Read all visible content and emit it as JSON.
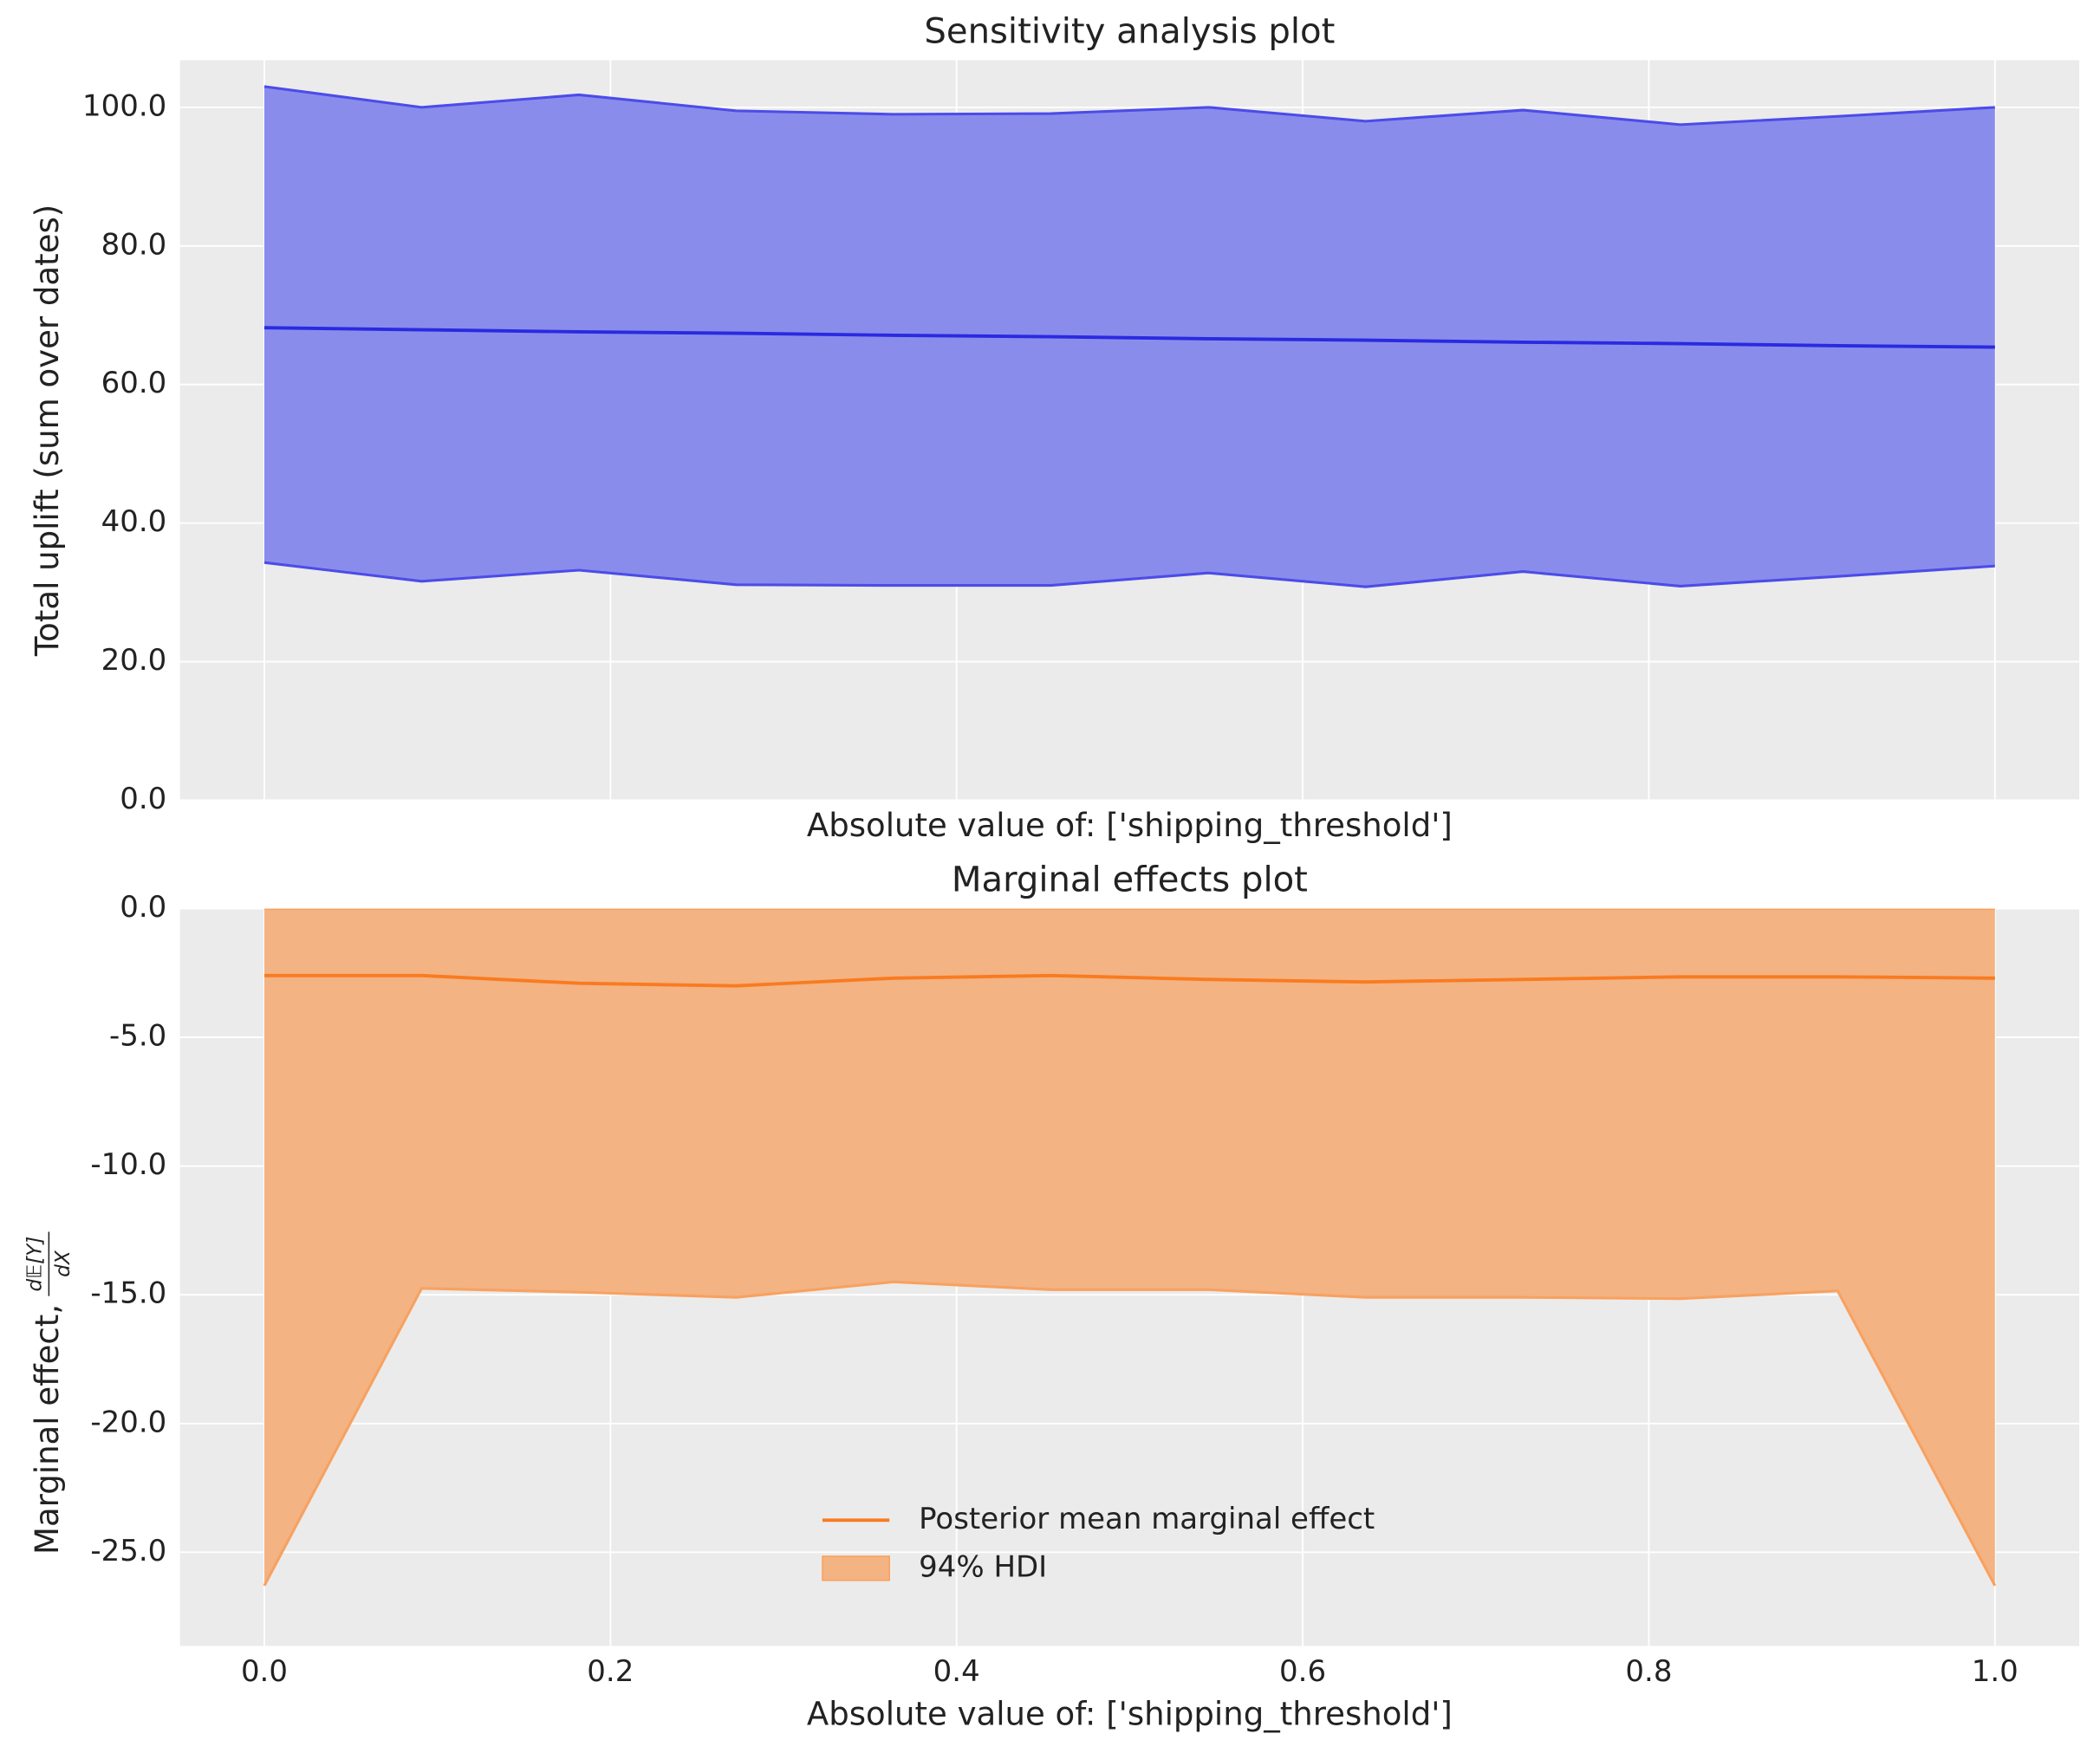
{
  "chart_data": [
    {
      "type": "line",
      "title": "Sensitivity analysis plot",
      "xlabel": "Absolute value of: ['shipping_threshold']",
      "ylabel": "Total uplift (sum over dates)",
      "x": [
        0,
        0.0909,
        0.1818,
        0.2727,
        0.3636,
        0.4545,
        0.5455,
        0.6364,
        0.7273,
        0.8182,
        0.9091,
        1.0
      ],
      "series": [
        {
          "values": [
            68.2,
            67.9,
            67.6,
            67.4,
            67.1,
            66.9,
            66.6,
            66.4,
            66.1,
            65.9,
            65.6,
            65.4
          ],
          "color": "#2a2ae0"
        }
      ],
      "band": {
        "lower": [
          34.3,
          31.6,
          33.2,
          31.1,
          31.0,
          31.0,
          32.8,
          30.8,
          33.0,
          30.9,
          32.3,
          33.8
        ],
        "upper": [
          103.0,
          100.0,
          101.8,
          99.5,
          99.0,
          99.1,
          100.0,
          98.0,
          99.6,
          97.5,
          98.7,
          100.0
        ],
        "color": "#8a8cec",
        "edge_color": "#4c4ce8"
      },
      "xlim": [
        -0.0487,
        1.0487
      ],
      "ylim": [
        0,
        106.8
      ],
      "xticks": [
        0,
        0.2,
        0.4,
        0.6,
        0.8,
        1.0
      ],
      "xtick_labels": false,
      "yticks": [
        {
          "value": 0,
          "label": "0.0"
        },
        {
          "value": 20,
          "label": "20.0"
        },
        {
          "value": 40,
          "label": "40.0"
        },
        {
          "value": 60,
          "label": "60.0"
        },
        {
          "value": 80,
          "label": "80.0"
        },
        {
          "value": 100,
          "label": "100.0"
        }
      ],
      "grid": true
    },
    {
      "type": "line",
      "title": "Marginal effects plot",
      "xlabel": "Absolute value of: ['shipping_threshold']",
      "ylabel": "Marginal effect,",
      "ylabel_math": {
        "numerator": "d𝔼[Y]",
        "denominator": "dX"
      },
      "x": [
        0,
        0.0909,
        0.1818,
        0.2727,
        0.3636,
        0.4545,
        0.5455,
        0.6364,
        0.7273,
        0.8182,
        0.9091,
        1.0
      ],
      "series": [
        {
          "name": "Posterior mean marginal effect",
          "values": [
            -2.6,
            -2.6,
            -2.9,
            -3.0,
            -2.7,
            -2.6,
            -2.75,
            -2.85,
            -2.75,
            -2.65,
            -2.65,
            -2.7
          ],
          "color": "#f97b20"
        }
      ],
      "band": {
        "name": "94% HDI",
        "lower": [
          -26.3,
          -14.75,
          -14.9,
          -15.1,
          -14.5,
          -14.8,
          -14.8,
          -15.1,
          -15.1,
          -15.15,
          -14.85,
          -26.3
        ],
        "upper": [
          0,
          0,
          0,
          0,
          0,
          0,
          0,
          0,
          0,
          0,
          0,
          0
        ],
        "color": "#f3b383",
        "edge_color": "#f8a160"
      },
      "xlim": [
        -0.0487,
        1.0487
      ],
      "ylim": [
        -28.64,
        0
      ],
      "xticks": [
        {
          "value": 0,
          "label": "0.0"
        },
        {
          "value": 0.2,
          "label": "0.2"
        },
        {
          "value": 0.4,
          "label": "0.4"
        },
        {
          "value": 0.6,
          "label": "0.6"
        },
        {
          "value": 0.8,
          "label": "0.8"
        },
        {
          "value": 1.0,
          "label": "1.0"
        }
      ],
      "xtick_labels": true,
      "yticks": [
        {
          "value": 0,
          "label": "0.0"
        },
        {
          "value": -5,
          "label": "-5.0"
        },
        {
          "value": -10,
          "label": "-10.0"
        },
        {
          "value": -15,
          "label": "-15.0"
        },
        {
          "value": -20,
          "label": "-20.0"
        },
        {
          "value": -25,
          "label": "-25.0"
        }
      ],
      "grid": true,
      "legend": "lower center"
    }
  ]
}
